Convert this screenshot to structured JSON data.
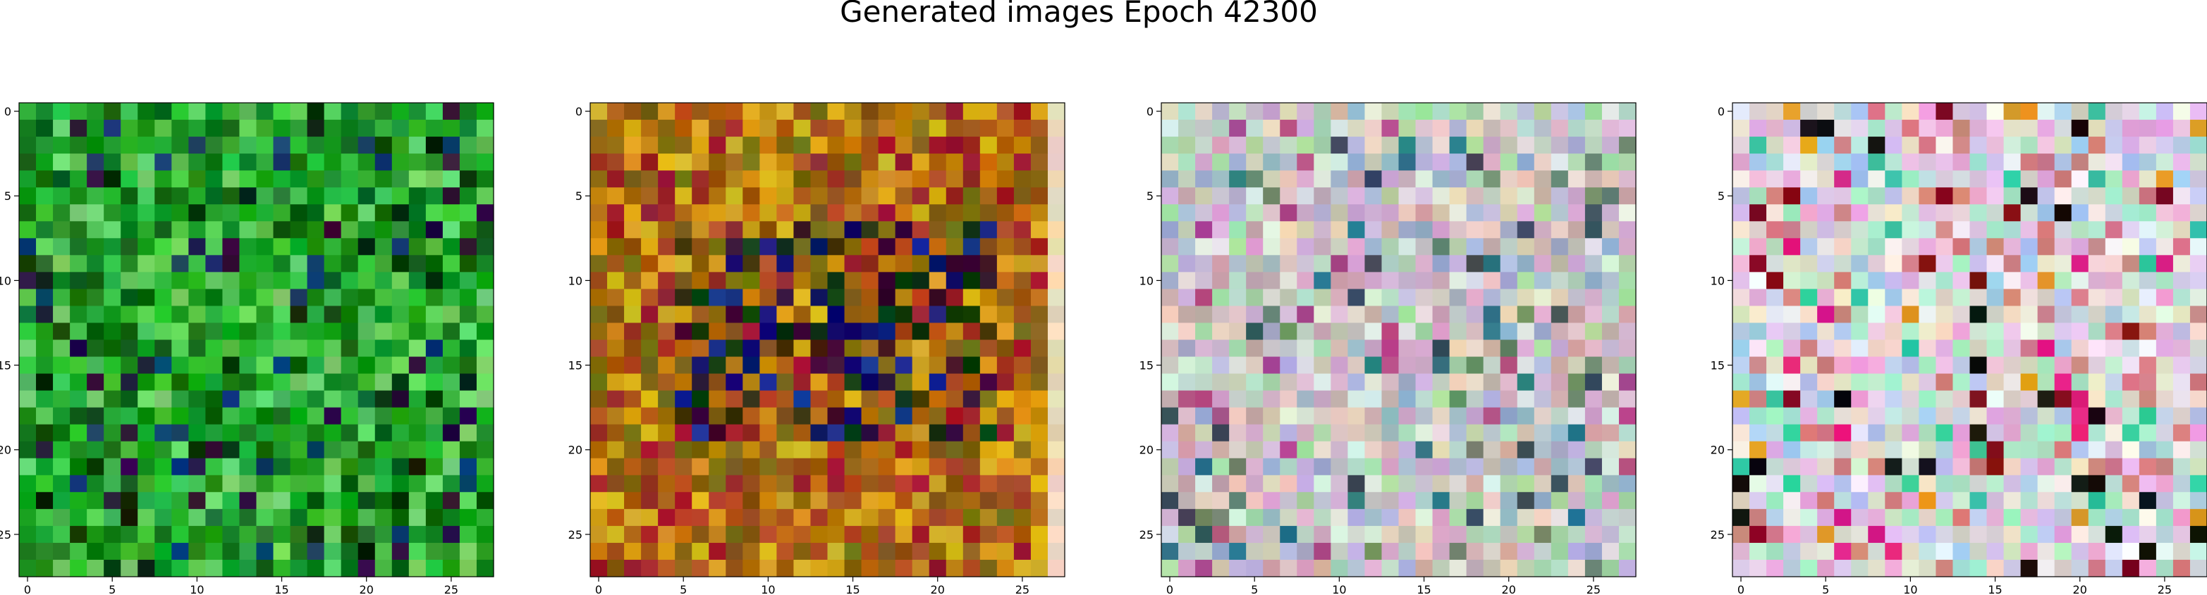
{
  "figure": {
    "title": "Generated images Epoch 42300"
  },
  "chart_data": [
    {
      "type": "heatmap",
      "title": "",
      "xlabel": "",
      "ylabel": "",
      "grid_size": [
        28,
        28
      ],
      "xlim": [
        -0.5,
        27.5
      ],
      "ylim": [
        27.5,
        -0.5
      ],
      "x_ticks": [
        0,
        5,
        10,
        15,
        20,
        25
      ],
      "y_ticks": [
        0,
        5,
        10,
        15,
        20,
        25
      ],
      "grid": false,
      "palette": "green",
      "colors": [
        "#0f9a18",
        "#178f1d",
        "#24a82d",
        "#33ba3a",
        "#4fc650",
        "#6fd46a",
        "#0b6b12",
        "#084f0d",
        "#1f7f2a",
        "#0f3d6e",
        "#2a1240",
        "#062a08"
      ],
      "cells": "generated noise image, 28x28 RGB pixels (values not individually readable)"
    },
    {
      "type": "heatmap",
      "title": "",
      "xlabel": "",
      "ylabel": "",
      "grid_size": [
        28,
        28
      ],
      "xlim": [
        -0.5,
        27.5
      ],
      "ylim": [
        27.5,
        -0.5
      ],
      "x_ticks": [
        0,
        5,
        10,
        15,
        20,
        25
      ],
      "y_ticks": [
        0,
        5,
        10,
        15,
        20,
        25
      ],
      "grid": false,
      "palette": "orange",
      "colors": [
        "#c07a10",
        "#a86010",
        "#d49a1a",
        "#8a5a14",
        "#b04a20",
        "#9c1e28",
        "#7a6a10",
        "#d8b020",
        "#1a2a90",
        "#0a0a6a",
        "#3a0a30",
        "#0a3a10",
        "#3a2a0a",
        "#f0d8b8"
      ],
      "cells": "generated noise image, 28x28 RGB pixels (values not individually readable)"
    },
    {
      "type": "heatmap",
      "title": "",
      "xlabel": "",
      "ylabel": "",
      "grid_size": [
        28,
        28
      ],
      "xlim": [
        -0.5,
        27.5
      ],
      "ylim": [
        27.5,
        -0.5
      ],
      "x_ticks": [
        0,
        5,
        10,
        15,
        20,
        25
      ],
      "y_ticks": [
        0,
        5,
        10,
        15,
        20,
        25
      ],
      "grid": false,
      "palette": "pastel",
      "colors": [
        "#c8c8b8",
        "#b8d8c8",
        "#d8b8d8",
        "#b8b8d8",
        "#e8d0c0",
        "#a8d8a8",
        "#d0a8c8",
        "#9ab0c8",
        "#c8a8a8",
        "#e0e8e0",
        "#6a8a6a",
        "#3a4a5a",
        "#b04a8a",
        "#2a7a8a"
      ],
      "cells": "generated noise image, 28x28 RGB pixels (values not individually readable)"
    },
    {
      "type": "heatmap",
      "title": "",
      "xlabel": "",
      "ylabel": "",
      "grid_size": [
        28,
        28
      ],
      "xlim": [
        -0.5,
        27.5
      ],
      "ylim": [
        27.5,
        -0.5
      ],
      "x_ticks": [
        0,
        5,
        10,
        15,
        20,
        25
      ],
      "y_ticks": [
        0,
        5,
        10,
        15,
        20,
        25
      ],
      "grid": false,
      "palette": "pastel-vivid",
      "colors": [
        "#d8d8c8",
        "#c8e8d8",
        "#e8c8e8",
        "#c8c8e8",
        "#f0e0d0",
        "#a8e8c8",
        "#e8a8d8",
        "#a8c8e8",
        "#d08080",
        "#f0f0f0",
        "#30c8a0",
        "#e02080",
        "#101010",
        "#800818",
        "#e0a020"
      ],
      "cells": "generated noise image, 28x28 RGB pixels (values not individually readable)"
    }
  ]
}
